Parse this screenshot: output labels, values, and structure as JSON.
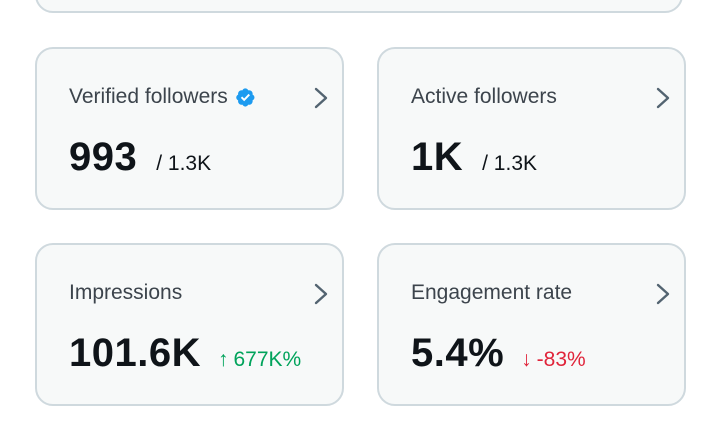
{
  "colors": {
    "card_background": "#f7f9f9",
    "card_border": "#cfd9de",
    "verified_badge": "#1d9bf0",
    "positive": "#00a35b",
    "negative": "#e0243a",
    "chevron": "#536471"
  },
  "cards": [
    {
      "title": "Verified followers",
      "icon": "verified-badge-icon",
      "value": "993",
      "total": "/ 1.3K"
    },
    {
      "title": "Active followers",
      "value": "1K",
      "total": "/ 1.3K"
    },
    {
      "title": "Impressions",
      "value": "101.6K",
      "change": {
        "direction": "up",
        "arrow": "↑",
        "text": "677K%"
      }
    },
    {
      "title": "Engagement rate",
      "value": "5.4%",
      "change": {
        "direction": "down",
        "arrow": "↓",
        "text": "-83%"
      }
    }
  ]
}
